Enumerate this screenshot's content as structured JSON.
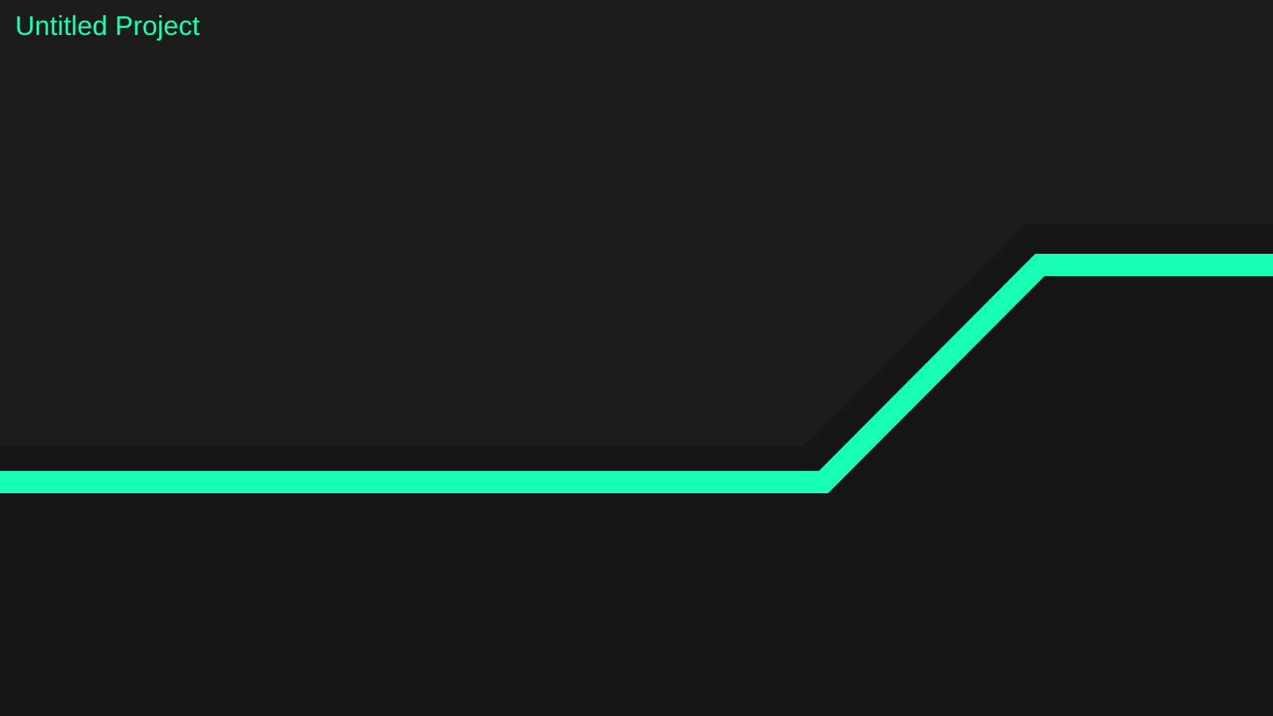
{
  "project": {
    "title": "Untitled Project"
  },
  "colors": {
    "accent": "#16ffb2",
    "background_upper": "#1b1b1a",
    "background_lower": "#151515",
    "shadow_band": "#161616"
  }
}
